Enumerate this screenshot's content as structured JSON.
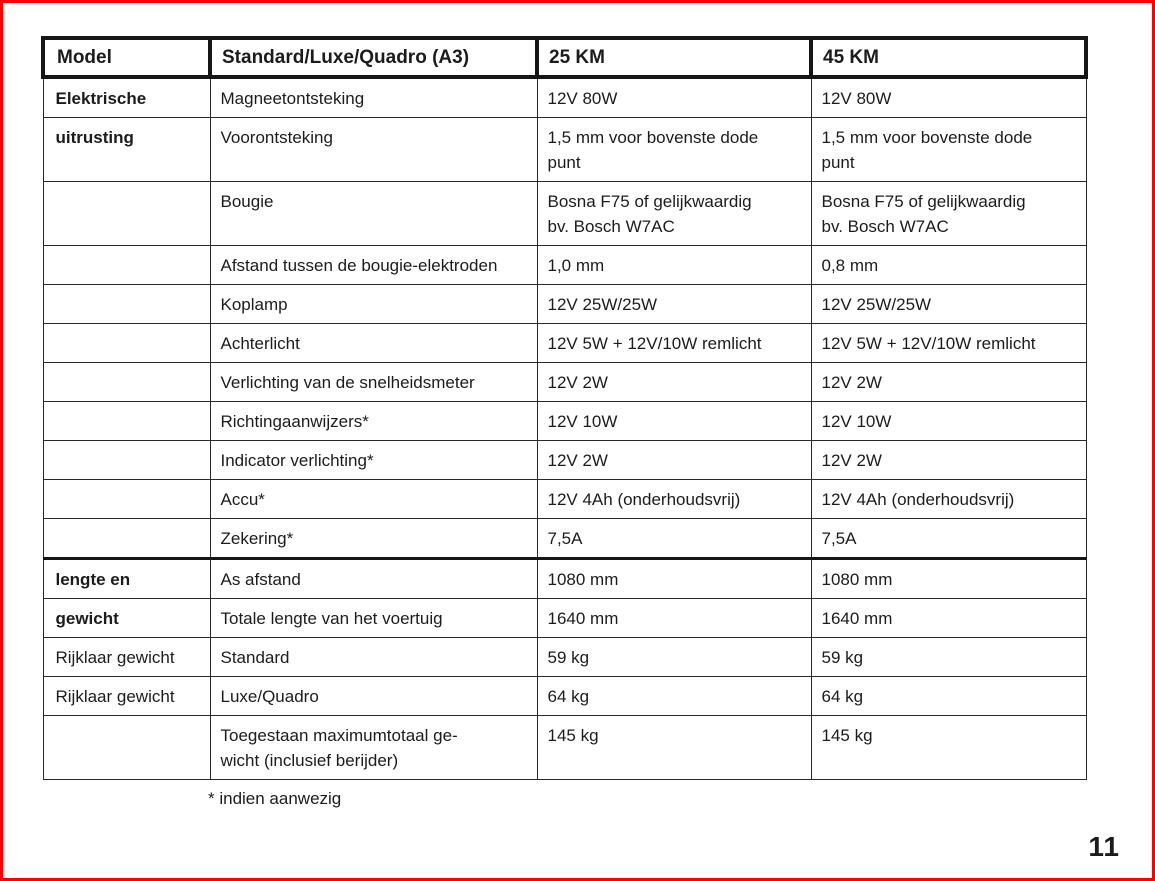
{
  "page": {
    "number": "11",
    "border_color": "#ff0000",
    "footnote": "* indien aanwezig"
  },
  "table": {
    "columns": [
      "Model",
      "Standard/Luxe/Quadro (A3)",
      "25 KM",
      "45 KM"
    ],
    "rows": [
      {
        "group": "Elektrische",
        "group_bold": true,
        "label": "Magneetontsteking",
        "v25": "12V 80W",
        "v45": "12V 80W"
      },
      {
        "group": "uitrusting",
        "group_bold": true,
        "label": "Voorontsteking",
        "v25": "1,5 mm voor bovenste dode\npunt",
        "v45": "1,5 mm voor bovenste dode\npunt"
      },
      {
        "group": "",
        "group_bold": false,
        "label": "Bougie",
        "v25": "Bosna F75 of gelijkwaardig\nbv. Bosch W7AC",
        "v45": "Bosna F75 of gelijkwaardig\nbv. Bosch W7AC"
      },
      {
        "group": "",
        "group_bold": false,
        "label": "Afstand tussen de bougie-elektroden",
        "v25": "1,0 mm",
        "v45": "0,8 mm"
      },
      {
        "group": "",
        "group_bold": false,
        "label": "Koplamp",
        "v25": "12V 25W/25W",
        "v45": "12V 25W/25W"
      },
      {
        "group": "",
        "group_bold": false,
        "label": "Achterlicht",
        "v25": "12V 5W + 12V/10W remlicht",
        "v45": "12V 5W + 12V/10W remlicht"
      },
      {
        "group": "",
        "group_bold": false,
        "label": "Verlichting van de snelheidsmeter",
        "v25": "12V 2W",
        "v45": "12V 2W"
      },
      {
        "group": "",
        "group_bold": false,
        "label": "Richtingaanwijzers*",
        "v25": "12V 10W",
        "v45": "12V 10W"
      },
      {
        "group": "",
        "group_bold": false,
        "label": "Indicator verlichting*",
        "v25": "12V 2W",
        "v45": "12V 2W"
      },
      {
        "group": "",
        "group_bold": false,
        "label": "Accu*",
        "v25": "12V 4Ah (onderhoudsvrij)",
        "v45": "12V 4Ah (onderhoudsvrij)"
      },
      {
        "group": "",
        "group_bold": false,
        "label": "Zekering*",
        "v25": "7,5A",
        "v45": "7,5A"
      },
      {
        "group": "lengte en",
        "group_bold": true,
        "section_start": true,
        "label": "As afstand",
        "v25": "1080 mm",
        "v45": "1080 mm"
      },
      {
        "group": "gewicht",
        "group_bold": true,
        "label": "Totale lengte van het voertuig",
        "v25": "1640 mm",
        "v45": "1640 mm"
      },
      {
        "group": "Rijklaar gewicht",
        "group_bold": false,
        "label": "Standard",
        "v25": "59 kg",
        "v45": "59 kg"
      },
      {
        "group": "Rijklaar gewicht",
        "group_bold": false,
        "label": "Luxe/Quadro",
        "v25": "64 kg",
        "v45": "64 kg"
      },
      {
        "group": "",
        "group_bold": false,
        "label": "Toegestaan maximumtotaal ge-\nwicht (inclusief berijder)",
        "v25": "145 kg",
        "v45": "145 kg"
      }
    ]
  }
}
